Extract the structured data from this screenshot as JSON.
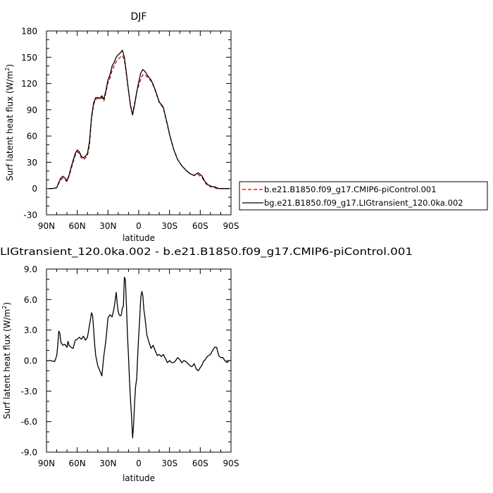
{
  "chart_data": [
    {
      "type": "line",
      "title": "DJF",
      "xlabel": "latitude",
      "ylabel": "Surf latent heat flux (W/m",
      "ylabel_sup": "2",
      "ylabel_end": ")",
      "xlim": [
        90,
        -90
      ],
      "ylim": [
        -30,
        180
      ],
      "x_ticks": [
        90,
        60,
        30,
        0,
        -30,
        -60,
        -90
      ],
      "x_tick_labels": [
        "90N",
        "60N",
        "30N",
        "0",
        "30S",
        "60S",
        "90S"
      ],
      "y_ticks": [
        -30,
        0,
        30,
        60,
        90,
        120,
        150,
        180
      ],
      "y_tick_labels": [
        "-30",
        "0",
        "30",
        "60",
        "90",
        "120",
        "150",
        "180"
      ],
      "legend_position": "right",
      "series": [
        {
          "name": "b.e21.B1850.f09_g17.CMIP6-piControl.001",
          "color": "#cc0000",
          "dash": "dashed",
          "x": [
            88,
            84,
            80,
            78,
            76,
            74,
            72,
            70,
            68,
            66,
            64,
            62,
            60,
            58,
            56,
            54,
            52,
            50,
            48,
            46,
            44,
            42,
            40,
            38,
            36,
            34,
            32,
            30,
            28,
            26,
            24,
            22,
            20,
            18,
            16,
            14,
            12,
            10,
            8,
            6,
            4,
            2,
            0,
            -2,
            -4,
            -6,
            -8,
            -10,
            -12,
            -14,
            -16,
            -18,
            -20,
            -22,
            -24,
            -26,
            -28,
            -30,
            -34,
            -38,
            -42,
            -46,
            -50,
            -54,
            -58,
            -62,
            -64,
            -66,
            -68,
            -70,
            -72,
            -74,
            -76,
            -78,
            -80,
            -82,
            -84,
            -86,
            -88
          ],
          "y": [
            0,
            0,
            1,
            6,
            10,
            12,
            10,
            8,
            14,
            22,
            30,
            38,
            42,
            40,
            35,
            33,
            35,
            38,
            50,
            80,
            96,
            102,
            103,
            102,
            104,
            100,
            110,
            121,
            126,
            135,
            140,
            145,
            148,
            150,
            152,
            147,
            130,
            112,
            95,
            86,
            98,
            110,
            118,
            125,
            130,
            130,
            128,
            125,
            123,
            118,
            112,
            105,
            98,
            95,
            92,
            82,
            72,
            62,
            45,
            33,
            26,
            21,
            17,
            15,
            16,
            12,
            8,
            5,
            3,
            2,
            2,
            1,
            0,
            0,
            0,
            0,
            0,
            0,
            0
          ]
        },
        {
          "name": "bg.e21.B1850.f09_g17.LIGtransient_120.0ka.002",
          "color": "#000000",
          "dash": "solid",
          "x": [
            88,
            84,
            80,
            78,
            76,
            74,
            72,
            70,
            68,
            66,
            64,
            62,
            60,
            58,
            56,
            54,
            52,
            50,
            48,
            46,
            44,
            42,
            40,
            38,
            36,
            34,
            32,
            30,
            28,
            26,
            24,
            22,
            20,
            18,
            16,
            14,
            12,
            10,
            8,
            6,
            4,
            2,
            0,
            -2,
            -4,
            -6,
            -8,
            -10,
            -12,
            -14,
            -16,
            -18,
            -20,
            -22,
            -24,
            -26,
            -28,
            -30,
            -34,
            -38,
            -42,
            -46,
            -50,
            -54,
            -58,
            -62,
            -64,
            -66,
            -68,
            -70,
            -72,
            -74,
            -76,
            -78,
            -80,
            -82,
            -84,
            -86,
            -88
          ],
          "y": [
            0,
            0,
            1,
            7,
            12,
            14,
            12,
            9,
            15,
            24,
            32,
            40,
            44,
            42,
            37,
            35,
            37,
            40,
            54,
            82,
            98,
            104,
            104,
            103,
            106,
            102,
            112,
            124,
            130,
            140,
            144,
            150,
            153,
            155,
            158,
            150,
            132,
            112,
            94,
            84,
            96,
            110,
            122,
            132,
            136,
            134,
            130,
            127,
            124,
            119,
            113,
            106,
            99,
            96,
            93,
            83,
            73,
            62,
            45,
            33,
            26,
            21,
            17,
            15,
            18,
            14,
            9,
            6,
            4,
            3,
            2,
            2,
            1,
            0,
            0,
            0,
            0,
            0,
            0
          ]
        }
      ]
    },
    {
      "type": "line",
      "title": "LIGtransient_120.0ka.002 - b.e21.B1850.f09_g17.CMIP6-piControl.001",
      "xlabel": "latitude",
      "ylabel": "Surf latent heat flux (W/m",
      "ylabel_sup": "2",
      "ylabel_end": ")",
      "xlim": [
        90,
        -90
      ],
      "ylim": [
        -9,
        9
      ],
      "x_ticks": [
        90,
        60,
        30,
        0,
        -30,
        -60,
        -90
      ],
      "x_tick_labels": [
        "90N",
        "60N",
        "30N",
        "0",
        "30S",
        "60S",
        "90S"
      ],
      "y_ticks": [
        -9,
        -6,
        -3,
        0,
        3,
        6,
        9
      ],
      "y_tick_labels": [
        "-9.0",
        "-6.0",
        "-3.0",
        "0.0",
        "3.0",
        "6.0",
        "9.0"
      ],
      "series": [
        {
          "color": "#000000",
          "dash": "solid",
          "x": [
            90,
            86,
            82,
            80,
            79,
            78,
            77,
            76,
            74,
            72,
            70,
            69,
            68,
            66,
            64,
            62,
            60,
            58,
            56,
            54,
            52,
            50,
            48,
            46,
            45,
            44,
            43,
            42,
            40,
            38,
            36,
            34,
            32,
            30,
            28,
            26,
            24,
            22,
            21,
            20,
            19,
            18,
            17,
            16,
            15,
            14,
            13,
            12,
            11,
            10,
            9,
            8,
            7,
            6,
            5,
            4,
            3,
            2,
            1,
            0,
            -1,
            -2,
            -3,
            -4,
            -5,
            -6,
            -8,
            -10,
            -12,
            -14,
            -16,
            -18,
            -20,
            -22,
            -24,
            -26,
            -28,
            -30,
            -32,
            -34,
            -36,
            -38,
            -40,
            -42,
            -44,
            -46,
            -48,
            -50,
            -52,
            -54,
            -56,
            -58,
            -60,
            -62,
            -63,
            -64,
            -65,
            -66,
            -68,
            -70,
            -72,
            -74,
            -76,
            -78,
            -80,
            -82,
            -84,
            -86,
            -88,
            -90
          ],
          "y": [
            0.0,
            0.0,
            -0.1,
            0.5,
            1.5,
            2.9,
            2.7,
            1.8,
            1.5,
            1.6,
            1.3,
            1.9,
            1.5,
            1.3,
            1.2,
            2.0,
            2.1,
            2.3,
            2.1,
            2.4,
            2.0,
            2.3,
            3.5,
            4.7,
            4.4,
            3.0,
            1.6,
            0.5,
            -0.5,
            -1.0,
            -1.5,
            0.5,
            2.0,
            4.2,
            4.5,
            4.3,
            5.2,
            6.7,
            5.6,
            4.8,
            4.5,
            4.4,
            4.5,
            5.2,
            5.3,
            8.2,
            7.9,
            5.5,
            2.5,
            0.5,
            -2.0,
            -4.0,
            -5.5,
            -7.6,
            -6.3,
            -4.0,
            -2.5,
            -1.8,
            0.5,
            2.5,
            4.3,
            6.2,
            6.8,
            6.4,
            5.0,
            4.3,
            2.5,
            1.8,
            1.2,
            1.5,
            1.0,
            0.5,
            0.6,
            0.4,
            0.6,
            0.2,
            -0.2,
            0.0,
            -0.2,
            -0.2,
            0.0,
            0.3,
            0.1,
            -0.2,
            0.0,
            -0.1,
            -0.3,
            -0.5,
            -0.6,
            -0.3,
            -0.8,
            -1.0,
            -0.7,
            -0.4,
            -0.1,
            0.0,
            0.1,
            0.3,
            0.5,
            0.6,
            1.0,
            1.3,
            1.3,
            0.5,
            0.3,
            0.3,
            0.0,
            -0.2,
            0.0,
            0.0
          ]
        }
      ]
    }
  ]
}
